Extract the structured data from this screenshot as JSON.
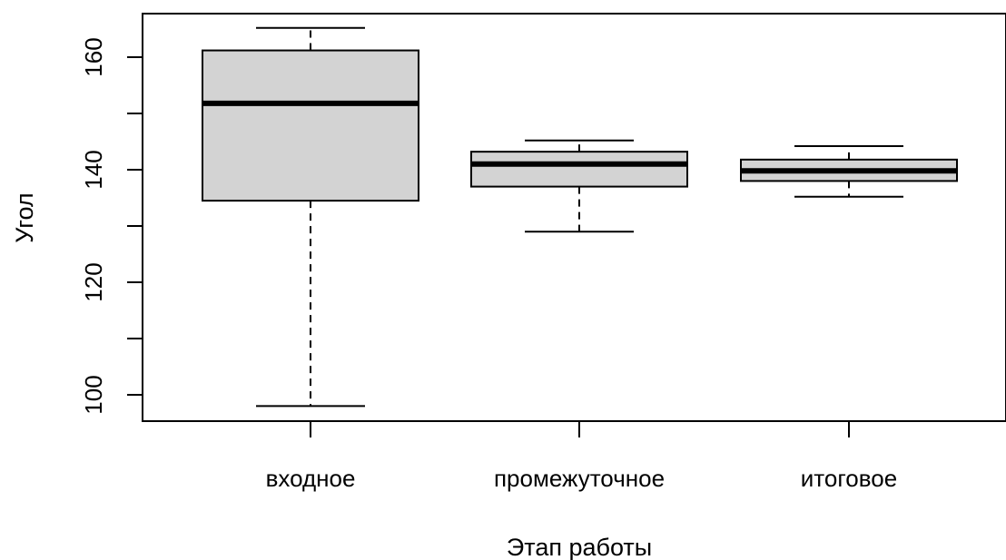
{
  "chart_data": {
    "type": "boxplot",
    "title": "",
    "xlabel": "Этап работы",
    "ylabel": "Угол",
    "categories": [
      "входное",
      "промежуточное",
      "итоговое"
    ],
    "boxes": [
      {
        "category": "входное",
        "whisker_low": 98,
        "q1": 134.5,
        "median": 151.8,
        "q3": 161.2,
        "whisker_high": 165.2
      },
      {
        "category": "промежуточное",
        "whisker_low": 129,
        "q1": 137,
        "median": 141,
        "q3": 143.2,
        "whisker_high": 145.2
      },
      {
        "category": "итоговое",
        "whisker_low": 135.2,
        "q1": 138,
        "median": 139.8,
        "q3": 141.8,
        "whisker_high": 144.2
      }
    ],
    "y_ticks": [
      100,
      120,
      140,
      160
    ],
    "ylim": [
      95,
      168
    ],
    "grid": false,
    "box_fill": "#d3d3d3",
    "line_color": "#000000"
  }
}
